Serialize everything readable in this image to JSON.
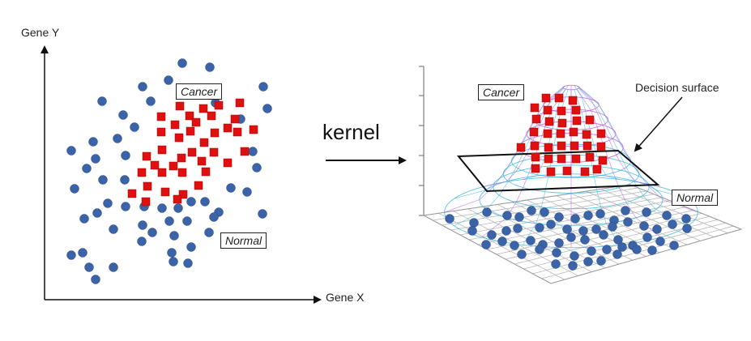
{
  "left_plot": {
    "y_axis_label": "Gene Y",
    "x_axis_label": "Gene X",
    "class_a_label": "Cancer",
    "class_b_label": "Normal"
  },
  "transform_label": "kernel",
  "right_plot": {
    "class_a_label": "Cancer",
    "class_b_label": "Normal",
    "surface_label": "Decision surface"
  },
  "colors": {
    "cancer": "#e01010",
    "normal": "#3b63a8",
    "normal_edge": "#2a4a80",
    "mesh_top": "#c060e0",
    "mesh_bottom": "#40b8e0",
    "grid": "#b8b8b8"
  },
  "icons": {
    "cancer_marker": "red-square-icon",
    "normal_marker": "blue-circle-icon",
    "arrow": "right-arrow-icon"
  }
}
